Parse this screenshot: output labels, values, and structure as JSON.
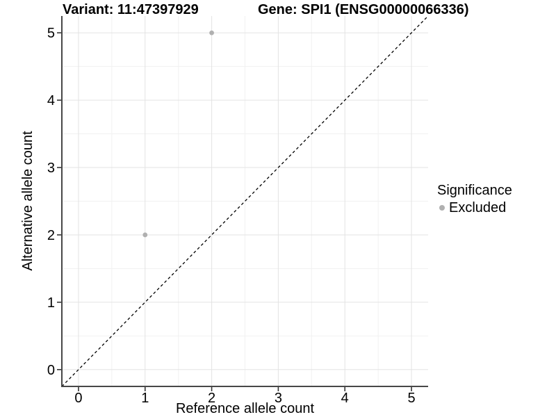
{
  "figure": {
    "background": "#ffffff"
  },
  "chart_data": {
    "type": "scatter",
    "title_left": "Variant: 11:47397929",
    "title_right": "Gene: SPI1 (ENSG00000066336)",
    "xlabel": "Reference allele count",
    "ylabel": "Alternative allele count",
    "xlim": [
      -0.25,
      5.25
    ],
    "ylim": [
      -0.25,
      5.25
    ],
    "x_ticks": [
      0,
      1,
      2,
      3,
      4,
      5
    ],
    "y_ticks": [
      0,
      1,
      2,
      3,
      4,
      5
    ],
    "x_minor_ticks": [
      0.5,
      1.5,
      2.5,
      3.5,
      4.5
    ],
    "y_minor_ticks": [
      0.5,
      1.5,
      2.5,
      3.5,
      4.5
    ],
    "grid": "major and minor gridlines on white panel",
    "identity_line": {
      "type": "y=x",
      "linetype": "dashed",
      "color": "#000000",
      "from": [
        -0.25,
        -0.25
      ],
      "to": [
        5.25,
        5.25
      ]
    },
    "series": [
      {
        "name": "Excluded",
        "color": "#b0b0b0",
        "points": [
          {
            "x": 2,
            "y": 5
          },
          {
            "x": 1,
            "y": 2
          }
        ]
      }
    ],
    "legend": {
      "title": "Significance",
      "position": "right-middle",
      "items": [
        {
          "label": "Excluded",
          "color": "#b0b0b0"
        }
      ]
    },
    "colors": {
      "grid_major": "#e3e3e3",
      "grid_minor": "#f1f1f1",
      "axis_line": "#474747",
      "tick": "#333333",
      "text": "#000000"
    }
  }
}
